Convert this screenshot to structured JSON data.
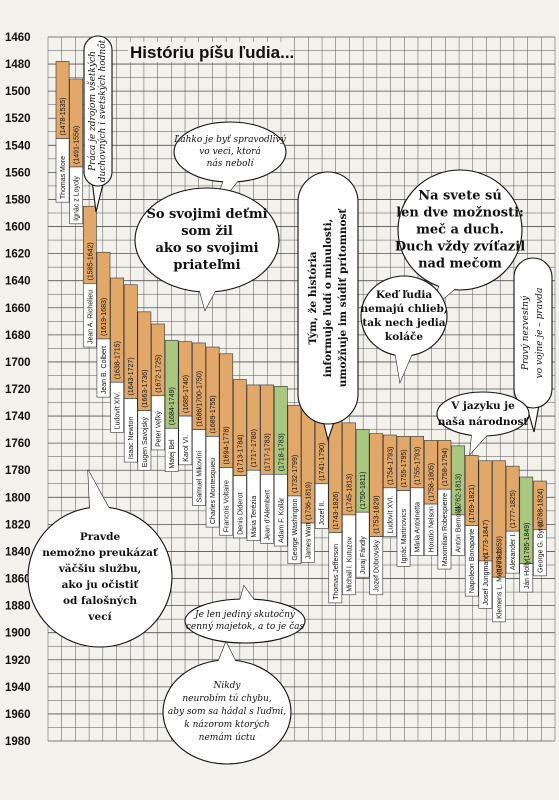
{
  "chart_data": {
    "type": "timeline",
    "title": "Históriu píšu ľudia...",
    "y_ticks": [
      1460,
      1480,
      1500,
      1520,
      1540,
      1560,
      1580,
      1600,
      1620,
      1640,
      1660,
      1680,
      1700,
      1720,
      1740,
      1760,
      1780,
      1800,
      1820,
      1840,
      1860,
      1880,
      1900,
      1920,
      1940,
      1960,
      1980
    ],
    "ylim": [
      1460,
      1980
    ],
    "grid": true,
    "colors": {
      "bar": "#e2a86a",
      "bar_green": "#a9c77e",
      "grid": "#555555",
      "label_box": "#ffffff"
    },
    "bars": [
      {
        "name": "Thomas More",
        "dates": "(1478-1535)",
        "start": 1478,
        "end": 1535,
        "label_end": 1582,
        "color": "orange"
      },
      {
        "name": "Ignác z Loyoly",
        "dates": "(1491-1556)",
        "start": 1491,
        "end": 1556,
        "label_end": 1598,
        "color": "orange"
      },
      {
        "name": "Jean A. Richelieu",
        "dates": "(1585-1642)",
        "start": 1585,
        "end": 1642,
        "label_end": 1689,
        "color": "orange"
      },
      {
        "name": "Jean B. Colbert",
        "dates": "(1619-1683)",
        "start": 1619,
        "end": 1683,
        "label_end": 1726,
        "color": "orange"
      },
      {
        "name": "Ľudovít XIV.",
        "dates": "(1638-1715)",
        "start": 1638,
        "end": 1715,
        "label_end": 1752,
        "color": "orange"
      },
      {
        "name": "Isaac Newton",
        "dates": "(1643-1727)",
        "start": 1643,
        "end": 1727,
        "label_end": 1774,
        "color": "orange"
      },
      {
        "name": "Eugen Savojský",
        "dates": "(1663-1736)",
        "start": 1663,
        "end": 1736,
        "label_end": 1780,
        "color": "orange"
      },
      {
        "name": "Peter Veľký",
        "dates": "(1672-1725)",
        "start": 1672,
        "end": 1725,
        "label_end": 1765,
        "color": "orange"
      },
      {
        "name": "Matej Bel",
        "dates": "(1684-1749)",
        "start": 1684,
        "end": 1749,
        "label_end": 1781,
        "color": "green"
      },
      {
        "name": "Karol VI.",
        "dates": "(1685-1740)",
        "start": 1685,
        "end": 1740,
        "label_end": 1776,
        "color": "orange"
      },
      {
        "name": "Samuel Mikovíni",
        "dates": "(1686/1700-1750)",
        "start": 1686,
        "end": 1750,
        "label_end": 1806,
        "color": "orange"
      },
      {
        "name": "Charles Montesquieu",
        "dates": "(1689-1755)",
        "start": 1689,
        "end": 1755,
        "label_end": 1822,
        "color": "orange"
      },
      {
        "name": "Francois Voltaire",
        "dates": "(1694-1778)",
        "start": 1694,
        "end": 1778,
        "label_end": 1828,
        "color": "orange"
      },
      {
        "name": "Denis Diderot",
        "dates": "(1713-1784)",
        "start": 1713,
        "end": 1784,
        "label_end": 1830,
        "color": "orange"
      },
      {
        "name": "Mária Terézia",
        "dates": "(1717-1780)",
        "start": 1717,
        "end": 1780,
        "label_end": 1832,
        "color": "orange"
      },
      {
        "name": "Jean d'Alembert",
        "dates": "(1717-1783)",
        "start": 1717,
        "end": 1783,
        "label_end": 1834,
        "color": "orange"
      },
      {
        "name": "Adam F. Kollár",
        "dates": "(1718-1783)",
        "start": 1718,
        "end": 1783,
        "label_end": 1836,
        "color": "green"
      },
      {
        "name": "George Washington",
        "dates": "(1732-1799)",
        "start": 1732,
        "end": 1799,
        "label_end": 1849,
        "color": "orange"
      },
      {
        "name": "James Watt",
        "dates": "(1736-1819)",
        "start": 1736,
        "end": 1819,
        "label_end": 1848,
        "color": "orange"
      },
      {
        "name": "Jozef II.",
        "dates": "(1741-1790)",
        "start": 1741,
        "end": 1790,
        "label_end": 1823,
        "color": "orange"
      },
      {
        "name": "Thomas Jefferson",
        "dates": "(1743-1826)",
        "start": 1743,
        "end": 1826,
        "label_end": 1878,
        "color": "orange"
      },
      {
        "name": "Michail I. Kutuzov",
        "dates": "(1745-1813)",
        "start": 1745,
        "end": 1813,
        "label_end": 1872,
        "color": "orange"
      },
      {
        "name": "Juraj Fándly",
        "dates": "(1750-1811)",
        "start": 1750,
        "end": 1811,
        "label_end": 1859,
        "color": "green"
      },
      {
        "name": "Jozef Dobrovský",
        "dates": "(1753-1829)",
        "start": 1753,
        "end": 1829,
        "label_end": 1872,
        "color": "orange"
      },
      {
        "name": "Ľudovít XVI.",
        "dates": "(1754-1793)",
        "start": 1754,
        "end": 1793,
        "label_end": 1829,
        "color": "orange"
      },
      {
        "name": "Ignác Martinovics",
        "dates": "(1755-1795)",
        "start": 1755,
        "end": 1795,
        "label_end": 1851,
        "color": "orange"
      },
      {
        "name": "Mária Antoinetta",
        "dates": "(1755-1793)",
        "start": 1755,
        "end": 1793,
        "label_end": 1843,
        "color": "orange"
      },
      {
        "name": "Horatio Nelson",
        "dates": "(1758-1805)",
        "start": 1758,
        "end": 1805,
        "label_end": 1843,
        "color": "orange"
      },
      {
        "name": "Maximilian Robespierre",
        "dates": "(1758-1794)",
        "start": 1758,
        "end": 1794,
        "label_end": 1853,
        "color": "orange"
      },
      {
        "name": "Antón Bernolák",
        "dates": "(1762-1813)",
        "start": 1762,
        "end": 1813,
        "label_end": 1843,
        "color": "green"
      },
      {
        "name": "Napoleon Bonaparte",
        "dates": "(1769-1821)",
        "start": 1769,
        "end": 1821,
        "label_end": 1873,
        "color": "orange"
      },
      {
        "name": "Josef Jungmann",
        "dates": "(1773-1847)",
        "start": 1773,
        "end": 1847,
        "label_end": 1882,
        "color": "orange"
      },
      {
        "name": "Klemens L. Metternich",
        "dates": "(1773-1859)",
        "start": 1773,
        "end": 1859,
        "label_end": 1892,
        "color": "orange"
      },
      {
        "name": "Alexander I.",
        "dates": "(1777-1825)",
        "start": 1777,
        "end": 1825,
        "label_end": 1856,
        "color": "orange"
      },
      {
        "name": "Ján Hollý",
        "dates": "(1785-1849)",
        "start": 1785,
        "end": 1849,
        "label_end": 1870,
        "color": "green"
      },
      {
        "name": "George G. Byron",
        "dates": "(1788-1824)",
        "start": 1788,
        "end": 1824,
        "label_end": 1858,
        "color": "orange"
      }
    ],
    "quotes": [
      {
        "id": "q-thomas-more",
        "lines": [
          "Práca je zdrojom všetkých",
          "duchovných i svetských hodnôt"
        ],
        "vertical": true
      },
      {
        "id": "q-spravodlivy",
        "lines": [
          "Ľahko je byť spravodlivý",
          "vo veci, ktorá",
          "nás nebolí"
        ]
      },
      {
        "id": "q-detmi",
        "lines": [
          "So svojimi deťmi",
          "som žil",
          "ako so svojimi",
          "priateľmi"
        ]
      },
      {
        "id": "q-historia",
        "lines": [
          "Tým, že história",
          "informuje ľudí o minulosti,",
          "umožňuje im súdiť prítomnosť"
        ],
        "vertical": true
      },
      {
        "id": "q-mec",
        "lines": [
          "Na svete sú",
          "len dve možnosti:",
          "meč a duch.",
          "Duch vždy zvíťazil",
          "nad mečom"
        ]
      },
      {
        "id": "q-pravda",
        "lines": [
          "Pravý nezvestný",
          "vo vojne je – pravda"
        ],
        "vertical": true
      },
      {
        "id": "q-kolace",
        "lines": [
          "Keď ľudia",
          "nemajú chlieb,",
          "tak nech jedia",
          "koláče"
        ]
      },
      {
        "id": "q-jazyk",
        "lines": [
          "V jazyku je",
          "naša národnosť"
        ]
      },
      {
        "id": "q-sluzba",
        "lines": [
          "Pravde",
          "nemožno preukázať",
          "väčšiu službu,",
          "ako ju očistiť",
          "od falošných",
          "vecí"
        ]
      },
      {
        "id": "q-majetok",
        "lines": [
          "Je len jediný skutočný",
          "cenný majetok, a to je čas"
        ]
      },
      {
        "id": "q-chybu",
        "lines": [
          "Nikdy",
          "neurobím tú chybu,",
          "aby som sa hádal s ľuďmi,",
          "k názorom ktorých",
          "nemám úctu"
        ]
      }
    ]
  }
}
